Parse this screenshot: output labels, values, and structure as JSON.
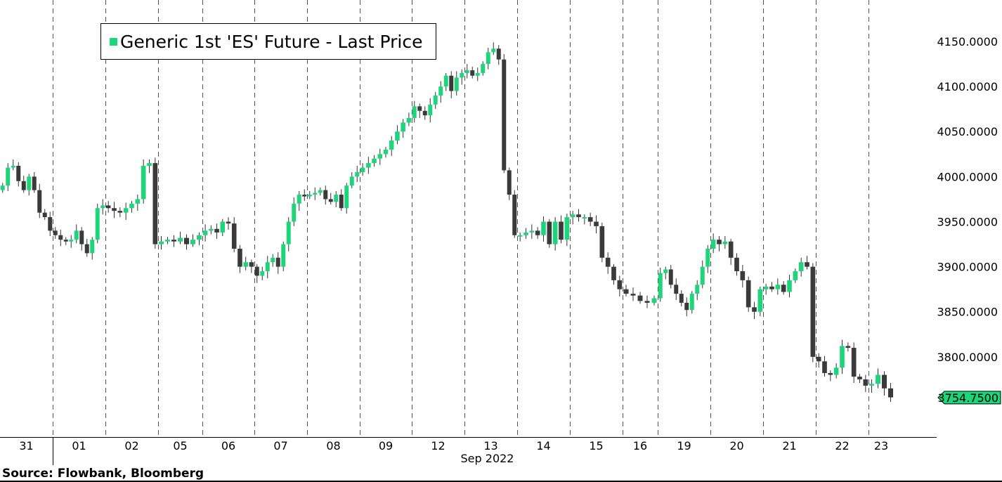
{
  "chart_data": {
    "type": "candlestick",
    "title": "Generic 1st 'ES' Future - Last Price",
    "legend": {
      "label": "Generic 1st 'ES' Future - Last Price",
      "placement": "top-left"
    },
    "xlabel": "Sep 2022",
    "source": "Source:  Flowbank, Bloomberg",
    "ylim": [
      3711,
      4196
    ],
    "yticks": [
      "4150.0000",
      "4100.0000",
      "4050.0000",
      "4000.0000",
      "3950.0000",
      "3900.0000",
      "3850.0000",
      "3800.0000"
    ],
    "ytick_values": [
      4150,
      4100,
      4050,
      4000,
      3950,
      3900,
      3850,
      3800
    ],
    "last_price": "3754.7500",
    "colors": {
      "up": "#1ed67a",
      "down": "#3a3a3a",
      "last_tag": "#1ed67a"
    },
    "days": [
      {
        "label": "31",
        "closes": [
          3990,
          4010,
          4012,
          3995,
          3985,
          4000,
          3985,
          3960,
          3955,
          3940
        ]
      },
      {
        "label": "01",
        "closes": [
          3935,
          3930,
          3928,
          3930,
          3940,
          3925,
          3915,
          3930,
          3965,
          3968
        ]
      },
      {
        "label": "02",
        "closes": [
          3965,
          3962,
          3960,
          3965,
          3970,
          3975,
          4012,
          4015,
          3925
        ]
      },
      {
        "label": "05",
        "closes": [
          3928,
          3930,
          3928,
          3932,
          3925,
          3930,
          3935
        ]
      },
      {
        "label": "06",
        "closes": [
          3940,
          3942,
          3938,
          3950,
          3948,
          3920,
          3900,
          3905,
          3900
        ]
      },
      {
        "label": "07",
        "closes": [
          3890,
          3895,
          3905,
          3910,
          3900,
          3925,
          3950,
          3970,
          3980,
          3978
        ]
      },
      {
        "label": "08",
        "closes": [
          3980,
          3982,
          3985,
          3975,
          3972,
          3980,
          3965,
          3990,
          4000,
          4005
        ]
      },
      {
        "label": "09",
        "closes": [
          4010,
          4015,
          4020,
          4025,
          4030,
          4040,
          4050,
          4060,
          4065
        ]
      },
      {
        "label": "12",
        "closes": [
          4078,
          4073,
          4068,
          4080,
          4090,
          4100,
          4112,
          4095,
          4110,
          4115
        ]
      },
      {
        "label": "13",
        "closes": [
          4118,
          4112,
          4115,
          4125,
          4138,
          4142,
          4130,
          4007,
          3980,
          3935
        ]
      },
      {
        "label": "14",
        "closes": [
          3935,
          3938,
          3940,
          3935,
          3950,
          3925,
          3950,
          3930,
          3955
        ]
      },
      {
        "label": "15",
        "closes": [
          3958,
          3955,
          3955,
          3950,
          3945,
          3910,
          3900,
          3885,
          3875
        ]
      },
      {
        "label": "16",
        "closes": [
          3870,
          3868,
          3862,
          3860,
          3865
        ]
      },
      {
        "label": "19",
        "closes": [
          3893,
          3897,
          3880,
          3870,
          3860,
          3852,
          3870,
          3880,
          3900,
          3920
        ]
      },
      {
        "label": "20",
        "closes": [
          3930,
          3925,
          3928,
          3910,
          3895,
          3885,
          3855,
          3850,
          3875
        ]
      },
      {
        "label": "21",
        "closes": [
          3878,
          3875,
          3880,
          3872,
          3885,
          3895,
          3905,
          3900,
          3800
        ]
      },
      {
        "label": "22",
        "closes": [
          3795,
          3782,
          3780,
          3788,
          3812,
          3810,
          3778,
          3775,
          3768
        ]
      },
      {
        "label": "23",
        "closes": [
          3770,
          3780,
          3765,
          3755
        ]
      }
    ]
  }
}
